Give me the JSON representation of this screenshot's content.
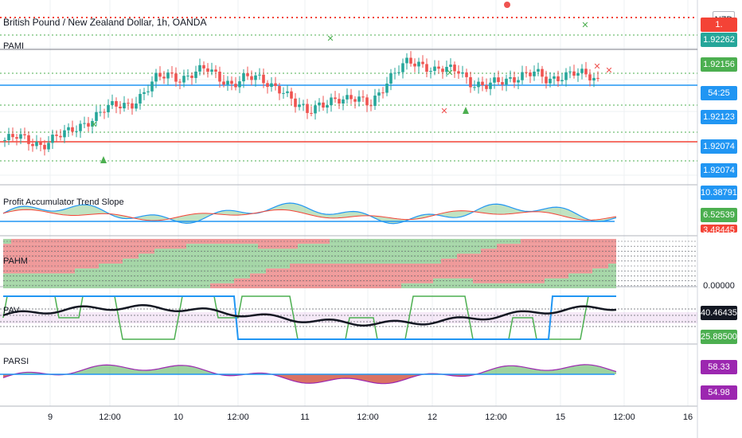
{
  "header": {
    "title": "British Pound / New Zealand Dollar, 1h, OANDA",
    "currency": "NZD"
  },
  "colors": {
    "up": "#26a69a",
    "down": "#ef5350",
    "blue": "#2196f3",
    "green": "#4caf50",
    "red": "#f44336",
    "purple": "#9c27b0",
    "grid": "#eef0f3",
    "axis": "#787b86"
  },
  "price_tags": [
    {
      "label": "1.",
      "color": "#f44336"
    },
    {
      "label": "1.92262",
      "color": "#26a69a"
    },
    {
      "label": "1.92156",
      "color": "#4caf50"
    },
    {
      "label": "54:25",
      "color": "#2196f3"
    },
    {
      "label": "1.92123",
      "color": "#2196f3"
    },
    {
      "label": "1.92074",
      "color": "#2196f3"
    },
    {
      "label": "1.92074",
      "color": "#2196f3"
    }
  ],
  "panes": {
    "slope": {
      "label": "Profit Accumulator Trend Slope",
      "tags": [
        {
          "label": "10.38791",
          "color": "#2196f3"
        },
        {
          "label": "6.52539",
          "color": "#4caf50"
        },
        {
          "label": "3.48445",
          "color": "#f44336"
        }
      ]
    },
    "pahm": {
      "label": "PAHM",
      "tags": [
        {
          "label": "0.00000",
          "color": "#ffffff"
        }
      ]
    },
    "pav": {
      "label": "PAV",
      "tags": [
        {
          "label": "40.46435",
          "color": "#131722"
        },
        {
          "label": "25.88500",
          "color": "#4caf50"
        }
      ]
    },
    "parsi": {
      "label": "PARSI",
      "tags": [
        {
          "label": "58.33",
          "color": "#9c27b0"
        },
        {
          "label": "54.98",
          "color": "#9c27b0"
        }
      ]
    }
  },
  "main_label": "PAMI",
  "xaxis": {
    "ticks": [
      "9",
      "12:00",
      "10",
      "12:00",
      "11",
      "12:00",
      "12",
      "12:00",
      "15",
      "12:00",
      "16"
    ]
  },
  "chart_data": {
    "type": "candlestick",
    "title": "British Pound / New Zealand Dollar, 1h, OANDA",
    "x_ticks": [
      "9",
      "12:00",
      "10",
      "12:00",
      "11",
      "12:00",
      "12",
      "12:00",
      "15",
      "12:00",
      "16"
    ],
    "y_ticks_visible": [
      "1.92262",
      "1.92156",
      "1.92123",
      "1.92074",
      "1.92074"
    ],
    "grid": true,
    "close_path": [
      20,
      22,
      19,
      17,
      22,
      25,
      31,
      37,
      43,
      45,
      47,
      55,
      65,
      68,
      66,
      70,
      72,
      66,
      62,
      66,
      65,
      62,
      58,
      46,
      40,
      48,
      50,
      48,
      51,
      49,
      58,
      69,
      80,
      77,
      70,
      72,
      73,
      62,
      58,
      63,
      66,
      68,
      69,
      64,
      68,
      70,
      67,
      64
    ]
  }
}
